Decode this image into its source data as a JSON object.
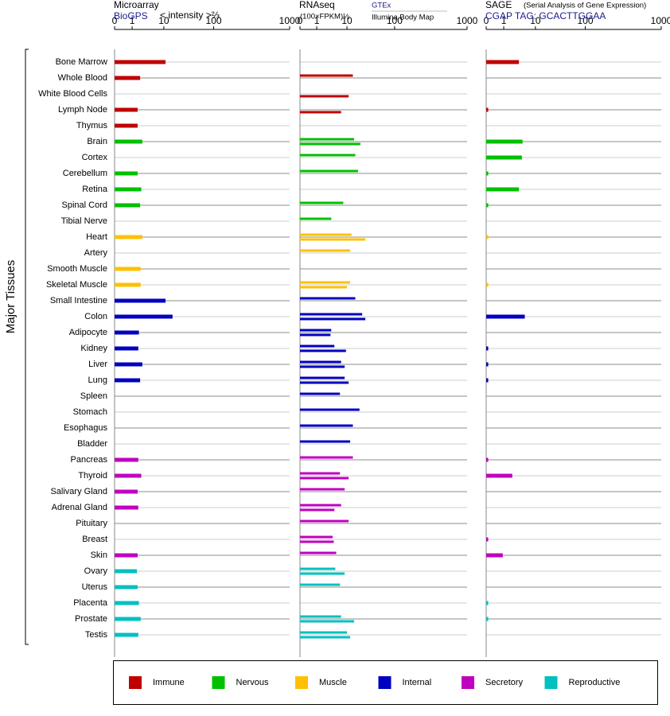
{
  "chart_data": {
    "type": "bar",
    "ylabel": "Major Tissues",
    "categories": [
      "Bone Marrow",
      "Whole Blood",
      "White Blood Cells",
      "Lymph Node",
      "Thymus",
      "Brain",
      "Cortex",
      "Cerebellum",
      "Retina",
      "Spinal Cord",
      "Tibial Nerve",
      "Heart",
      "Artery",
      "Smooth Muscle",
      "Skeletal Muscle",
      "Small Intestine",
      "Colon",
      "Adipocyte",
      "Kidney",
      "Liver",
      "Lung",
      "Spleen",
      "Stomach",
      "Esophagus",
      "Bladder",
      "Pancreas",
      "Thyroid",
      "Salivary Gland",
      "Adrenal Gland",
      "Pituitary",
      "Breast",
      "Skin",
      "Ovary",
      "Uterus",
      "Placenta",
      "Prostate",
      "Testis"
    ],
    "colors": [
      "#c00000",
      "#c00000",
      "#c00000",
      "#c00000",
      "#c00000",
      "#00c000",
      "#00c000",
      "#00c000",
      "#00c000",
      "#00c000",
      "#00c000",
      "#ffc000",
      "#ffc000",
      "#ffc000",
      "#ffc000",
      "#0000c0",
      "#0000c0",
      "#0000c0",
      "#0000c0",
      "#0000c0",
      "#0000c0",
      "#0000c0",
      "#0000c0",
      "#0000c0",
      "#0000c0",
      "#c000c0",
      "#c000c0",
      "#c000c0",
      "#c000c0",
      "#c000c0",
      "#c000c0",
      "#c000c0",
      "#00c0c0",
      "#00c0c0",
      "#00c0c0",
      "#00c0c0",
      "#00c0c0"
    ],
    "legend": [
      {
        "name": "Immune",
        "color": "#c00000"
      },
      {
        "name": "Nervous",
        "color": "#00c000"
      },
      {
        "name": "Muscle",
        "color": "#ffc000"
      },
      {
        "name": "Internal",
        "color": "#0000c0"
      },
      {
        "name": "Secretory",
        "color": "#c000c0"
      },
      {
        "name": "Reproductive",
        "color": "#00c0c0"
      }
    ],
    "panels": [
      {
        "title": "Microarray",
        "unit": "< intensity >⅔",
        "xlim": [
          0,
          1000
        ],
        "xticks": [
          0,
          1,
          10,
          100,
          1000
        ],
        "series": [
          {
            "name": "BioGPS",
            "values": [
              11,
              2.1,
              null,
              1.7,
              1.7,
              2.5,
              null,
              1.7,
              2.3,
              2.1,
              null,
              2.5,
              null,
              2.2,
              2.2,
              11,
              16,
              1.9,
              1.8,
              2.5,
              2.1,
              null,
              null,
              null,
              null,
              1.8,
              2.3,
              1.7,
              1.8,
              null,
              null,
              1.7,
              1.6,
              1.7,
              1.9,
              2.2,
              1.8
            ]
          }
        ]
      },
      {
        "title": "RNAseq",
        "unit": "(100×FPKM)½",
        "xlim": [
          0,
          1000
        ],
        "xticks": [
          0,
          1,
          10,
          100,
          1000
        ],
        "series": [
          {
            "name": "GTEx",
            "values": [
              null,
              14,
              null,
              null,
              null,
              15,
              16,
              18.5,
              null,
              8,
              3.6,
              13,
              12,
              null,
              12,
              16,
              23,
              3.6,
              4.5,
              7,
              8.7,
              6.5,
              20,
              14,
              12,
              14,
              6.5,
              8.7,
              7,
              11,
              4,
              5.1,
              4.8,
              6.5,
              null,
              7,
              10
            ]
          },
          {
            "name": "Illumina Body Map",
            "values": [
              null,
              null,
              11,
              7,
              null,
              21,
              null,
              null,
              null,
              null,
              null,
              27,
              null,
              null,
              10,
              null,
              27,
              3.4,
              9.4,
              8.7,
              11,
              null,
              null,
              null,
              null,
              null,
              11,
              null,
              4.5,
              null,
              4.3,
              null,
              8.7,
              null,
              null,
              15,
              12
            ]
          }
        ]
      },
      {
        "title": "SAGE",
        "note": "(Serial Analysis of Gene Expression)",
        "xlim": [
          0,
          1000
        ],
        "xticks": [
          0,
          1,
          10,
          100,
          1000
        ],
        "series": [
          {
            "name": "CGAP TAG: GCACTTGGAA",
            "values": [
              3.6,
              null,
              null,
              0.01,
              null,
              4.6,
              4.4,
              0.01,
              3.6,
              0.01,
              null,
              0.01,
              null,
              null,
              0.01,
              null,
              5.3,
              null,
              0.01,
              0.01,
              0.01,
              null,
              null,
              null,
              null,
              0.01,
              2.2,
              null,
              null,
              null,
              0.01,
              0.9,
              null,
              null,
              0.01,
              0.01,
              null
            ]
          }
        ]
      }
    ]
  }
}
